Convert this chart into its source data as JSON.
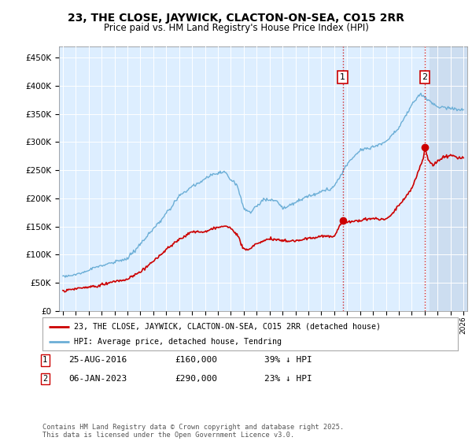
{
  "title": "23, THE CLOSE, JAYWICK, CLACTON-ON-SEA, CO15 2RR",
  "subtitle": "Price paid vs. HM Land Registry's House Price Index (HPI)",
  "legend_line1": "23, THE CLOSE, JAYWICK, CLACTON-ON-SEA, CO15 2RR (detached house)",
  "legend_line2": "HPI: Average price, detached house, Tendring",
  "annotation1_date": "25-AUG-2016",
  "annotation1_price": "£160,000",
  "annotation1_hpi": "39% ↓ HPI",
  "annotation2_date": "06-JAN-2023",
  "annotation2_price": "£290,000",
  "annotation2_hpi": "23% ↓ HPI",
  "footer": "Contains HM Land Registry data © Crown copyright and database right 2025.\nThis data is licensed under the Open Government Licence v3.0.",
  "hpi_color": "#6baed6",
  "price_color": "#cc0000",
  "marker1_x_year": 2016.65,
  "marker2_x_year": 2023.02,
  "marker1_y": 160000,
  "marker2_y": 290000,
  "ylim": [
    0,
    470000
  ],
  "xlim_start": 1994.7,
  "xlim_end": 2026.3,
  "background_color": "#ffffff",
  "plot_bg_color": "#ddeeff",
  "shade_start": 2023.4,
  "yticks": [
    0,
    50000,
    100000,
    150000,
    200000,
    250000,
    300000,
    350000,
    400000,
    450000
  ]
}
